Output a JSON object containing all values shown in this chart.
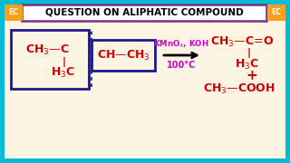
{
  "bg_outer": "#00bcd4",
  "bg_inner": "#fdf5e4",
  "title_text": "QUESTION ON ALIPHATIC COMPOUND",
  "title_color": "#000000",
  "title_bg": "#ffffff",
  "title_border": "#7b2d8b",
  "ec_bg": "#f5a020",
  "ec_text": "EC",
  "ec_color": "#ffffff",
  "reagent_color": "#cc00cc",
  "condition_text": "100°C",
  "structure_color": "#cc0000",
  "box1_color": "#1a1a8f",
  "arrow_color": "#000000"
}
